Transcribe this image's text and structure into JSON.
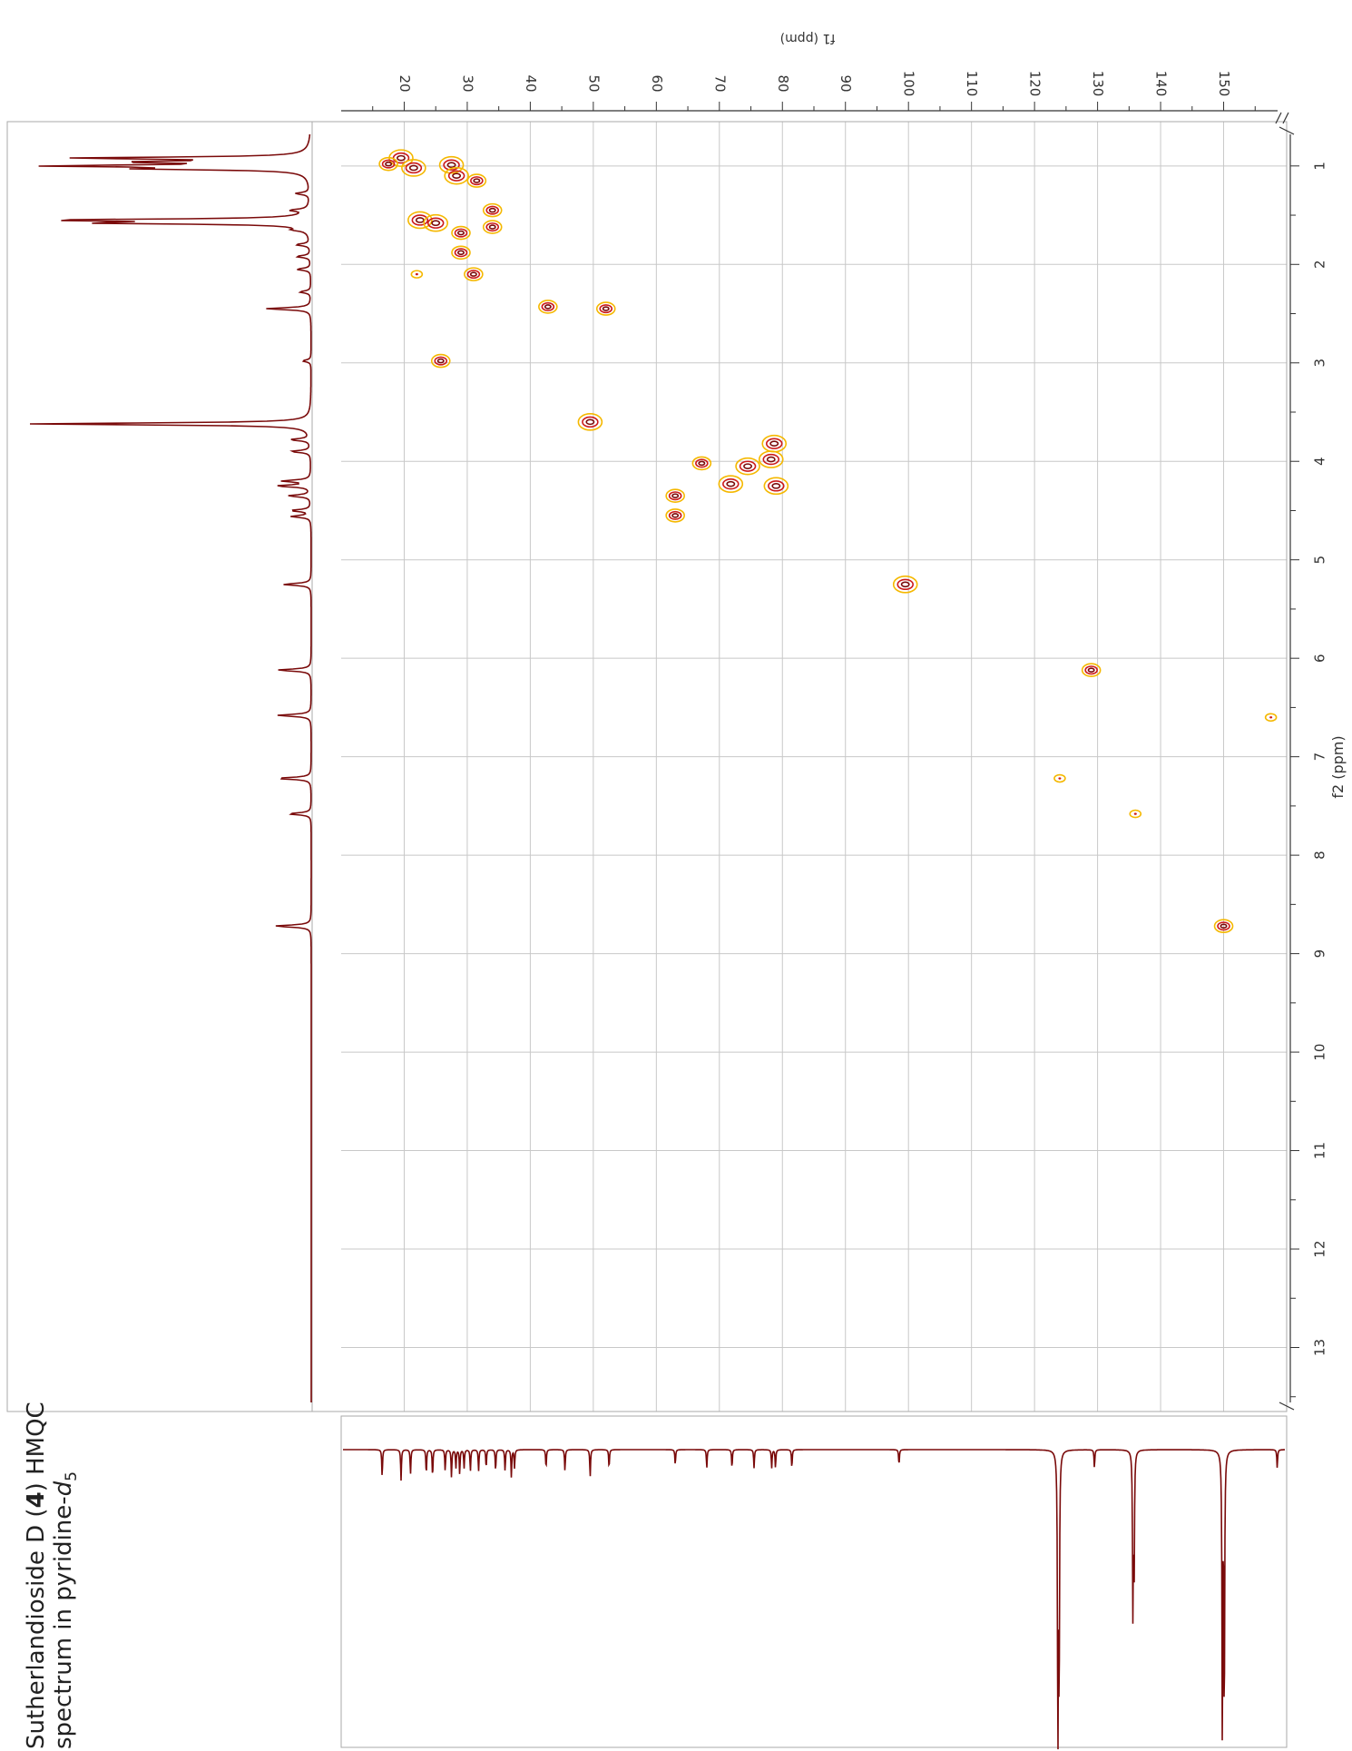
{
  "title": {
    "compound": "Sutherlandioside D",
    "number": "4",
    "technique": "HMQC",
    "line2_prefix": "spectrum in pyridine-",
    "solvent_letter": "d",
    "solvent_sub": "5"
  },
  "chart_data": {
    "type": "heatmap",
    "subtype": "2D HMQC NMR contour plot",
    "xlabel": "f2 (ppm)",
    "ylabel": "f1 (ppm)",
    "f2_axis": {
      "range": [
        0.55,
        13.65
      ],
      "ticks": [
        "1",
        "2",
        "3",
        "4",
        "5",
        "6",
        "7",
        "8",
        "9",
        "10",
        "11",
        "12",
        "13"
      ],
      "orientation": "vertical, increasing downward",
      "grid": true
    },
    "f1_axis": {
      "range": [
        10,
        160
      ],
      "ticks": [
        "20",
        "30",
        "40",
        "50",
        "60",
        "70",
        "80",
        "90",
        "100",
        "110",
        "120",
        "130",
        "140",
        "150"
      ],
      "orientation": "horizontal, increasing to the right",
      "grid": true
    },
    "colors": {
      "outer_contour": "#f5b800",
      "mid_contour": "#cc1a1a",
      "inner_contour": "#7a0a0a",
      "projection": "#7a0a0a",
      "grid": "#c8c8c8"
    },
    "cross_peaks": [
      {
        "f2": 0.92,
        "f1": 19.5,
        "size": 2
      },
      {
        "f2": 1.02,
        "f1": 21.5,
        "size": 2
      },
      {
        "f2": 0.98,
        "f1": 17.5,
        "size": 1
      },
      {
        "f2": 0.99,
        "f1": 27.5,
        "size": 2
      },
      {
        "f2": 1.1,
        "f1": 28.3,
        "size": 2
      },
      {
        "f2": 1.15,
        "f1": 31.5,
        "size": 1
      },
      {
        "f2": 1.55,
        "f1": 22.5,
        "size": 2
      },
      {
        "f2": 1.58,
        "f1": 25.0,
        "size": 2
      },
      {
        "f2": 1.45,
        "f1": 34.0,
        "size": 1
      },
      {
        "f2": 1.62,
        "f1": 34.0,
        "size": 1
      },
      {
        "f2": 1.68,
        "f1": 29.0,
        "size": 1
      },
      {
        "f2": 1.88,
        "f1": 29.0,
        "size": 1
      },
      {
        "f2": 2.1,
        "f1": 31.0,
        "size": 1
      },
      {
        "f2": 2.1,
        "f1": 22.0,
        "size": 0
      },
      {
        "f2": 2.43,
        "f1": 42.8,
        "size": 1
      },
      {
        "f2": 2.45,
        "f1": 52.0,
        "size": 1
      },
      {
        "f2": 2.98,
        "f1": 25.8,
        "size": 1
      },
      {
        "f2": 3.6,
        "f1": 49.5,
        "size": 2
      },
      {
        "f2": 3.82,
        "f1": 78.7,
        "size": 2
      },
      {
        "f2": 3.98,
        "f1": 78.2,
        "size": 2
      },
      {
        "f2": 4.02,
        "f1": 67.2,
        "size": 1
      },
      {
        "f2": 4.05,
        "f1": 74.5,
        "size": 2
      },
      {
        "f2": 4.23,
        "f1": 71.8,
        "size": 2
      },
      {
        "f2": 4.25,
        "f1": 79.0,
        "size": 2
      },
      {
        "f2": 4.35,
        "f1": 63.0,
        "size": 1
      },
      {
        "f2": 4.55,
        "f1": 63.0,
        "size": 1
      },
      {
        "f2": 5.25,
        "f1": 99.5,
        "size": 2
      },
      {
        "f2": 6.12,
        "f1": 129.0,
        "size": 1
      },
      {
        "f2": 6.6,
        "f1": 157.5,
        "size": 0
      },
      {
        "f2": 7.22,
        "f1": 124.0,
        "size": 0
      },
      {
        "f2": 7.58,
        "f1": 136.0,
        "size": 0
      },
      {
        "f2": 8.72,
        "f1": 150.0,
        "size": 1
      }
    ],
    "f2_projection_peaks": [
      {
        "ppm": 0.92,
        "height": 0.8
      },
      {
        "ppm": 0.96,
        "height": 0.55
      },
      {
        "ppm": 1.0,
        "height": 0.85
      },
      {
        "ppm": 1.03,
        "height": 0.5
      },
      {
        "ppm": 1.28,
        "height": 0.05
      },
      {
        "ppm": 1.45,
        "height": 0.06
      },
      {
        "ppm": 1.55,
        "height": 0.88
      },
      {
        "ppm": 1.58,
        "height": 0.7
      },
      {
        "ppm": 1.65,
        "height": 0.04
      },
      {
        "ppm": 1.8,
        "height": 0.05
      },
      {
        "ppm": 1.92,
        "height": 0.05
      },
      {
        "ppm": 2.05,
        "height": 0.05
      },
      {
        "ppm": 2.28,
        "height": 0.04
      },
      {
        "ppm": 2.45,
        "height": 0.16
      },
      {
        "ppm": 2.98,
        "height": 0.03
      },
      {
        "ppm": 3.62,
        "height": 1.0
      },
      {
        "ppm": 3.78,
        "height": 0.07
      },
      {
        "ppm": 3.9,
        "height": 0.07
      },
      {
        "ppm": 4.2,
        "height": 0.1
      },
      {
        "ppm": 4.25,
        "height": 0.12
      },
      {
        "ppm": 4.35,
        "height": 0.08
      },
      {
        "ppm": 4.5,
        "height": 0.07
      },
      {
        "ppm": 4.56,
        "height": 0.07
      },
      {
        "ppm": 5.25,
        "height": 0.1
      },
      {
        "ppm": 6.12,
        "height": 0.12
      },
      {
        "ppm": 6.58,
        "height": 0.12
      },
      {
        "ppm": 7.22,
        "height": 0.12
      },
      {
        "ppm": 7.58,
        "height": 0.08
      },
      {
        "ppm": 8.72,
        "height": 0.13
      }
    ],
    "f1_projection_peaks": [
      {
        "ppm": 16.5,
        "height": 0.09
      },
      {
        "ppm": 19.5,
        "height": 0.1
      },
      {
        "ppm": 21.0,
        "height": 0.08
      },
      {
        "ppm": 23.5,
        "height": 0.08
      },
      {
        "ppm": 24.5,
        "height": 0.09
      },
      {
        "ppm": 26.5,
        "height": 0.07
      },
      {
        "ppm": 27.5,
        "height": 0.09
      },
      {
        "ppm": 28.2,
        "height": 0.06
      },
      {
        "ppm": 28.8,
        "height": 0.08
      },
      {
        "ppm": 29.5,
        "height": 0.06
      },
      {
        "ppm": 30.5,
        "height": 0.07
      },
      {
        "ppm": 31.8,
        "height": 0.07
      },
      {
        "ppm": 33.0,
        "height": 0.06
      },
      {
        "ppm": 34.5,
        "height": 0.07
      },
      {
        "ppm": 36.0,
        "height": 0.07
      },
      {
        "ppm": 37.0,
        "height": 0.09
      },
      {
        "ppm": 37.5,
        "height": 0.06
      },
      {
        "ppm": 42.5,
        "height": 0.06
      },
      {
        "ppm": 45.5,
        "height": 0.07
      },
      {
        "ppm": 49.5,
        "height": 0.09
      },
      {
        "ppm": 52.5,
        "height": 0.06
      },
      {
        "ppm": 63.0,
        "height": 0.05
      },
      {
        "ppm": 68.0,
        "height": 0.06
      },
      {
        "ppm": 72.0,
        "height": 0.06
      },
      {
        "ppm": 75.5,
        "height": 0.06
      },
      {
        "ppm": 78.3,
        "height": 0.06
      },
      {
        "ppm": 78.9,
        "height": 0.06
      },
      {
        "ppm": 81.5,
        "height": 0.06
      },
      {
        "ppm": 98.5,
        "height": 0.05
      },
      {
        "ppm": 123.7,
        "height": 0.96
      },
      {
        "ppm": 123.9,
        "height": 0.8
      },
      {
        "ppm": 129.5,
        "height": 0.06
      },
      {
        "ppm": 135.6,
        "height": 0.52
      },
      {
        "ppm": 135.8,
        "height": 0.4
      },
      {
        "ppm": 149.8,
        "height": 0.98
      },
      {
        "ppm": 150.1,
        "height": 0.9
      },
      {
        "ppm": 158.5,
        "height": 0.06
      }
    ]
  }
}
